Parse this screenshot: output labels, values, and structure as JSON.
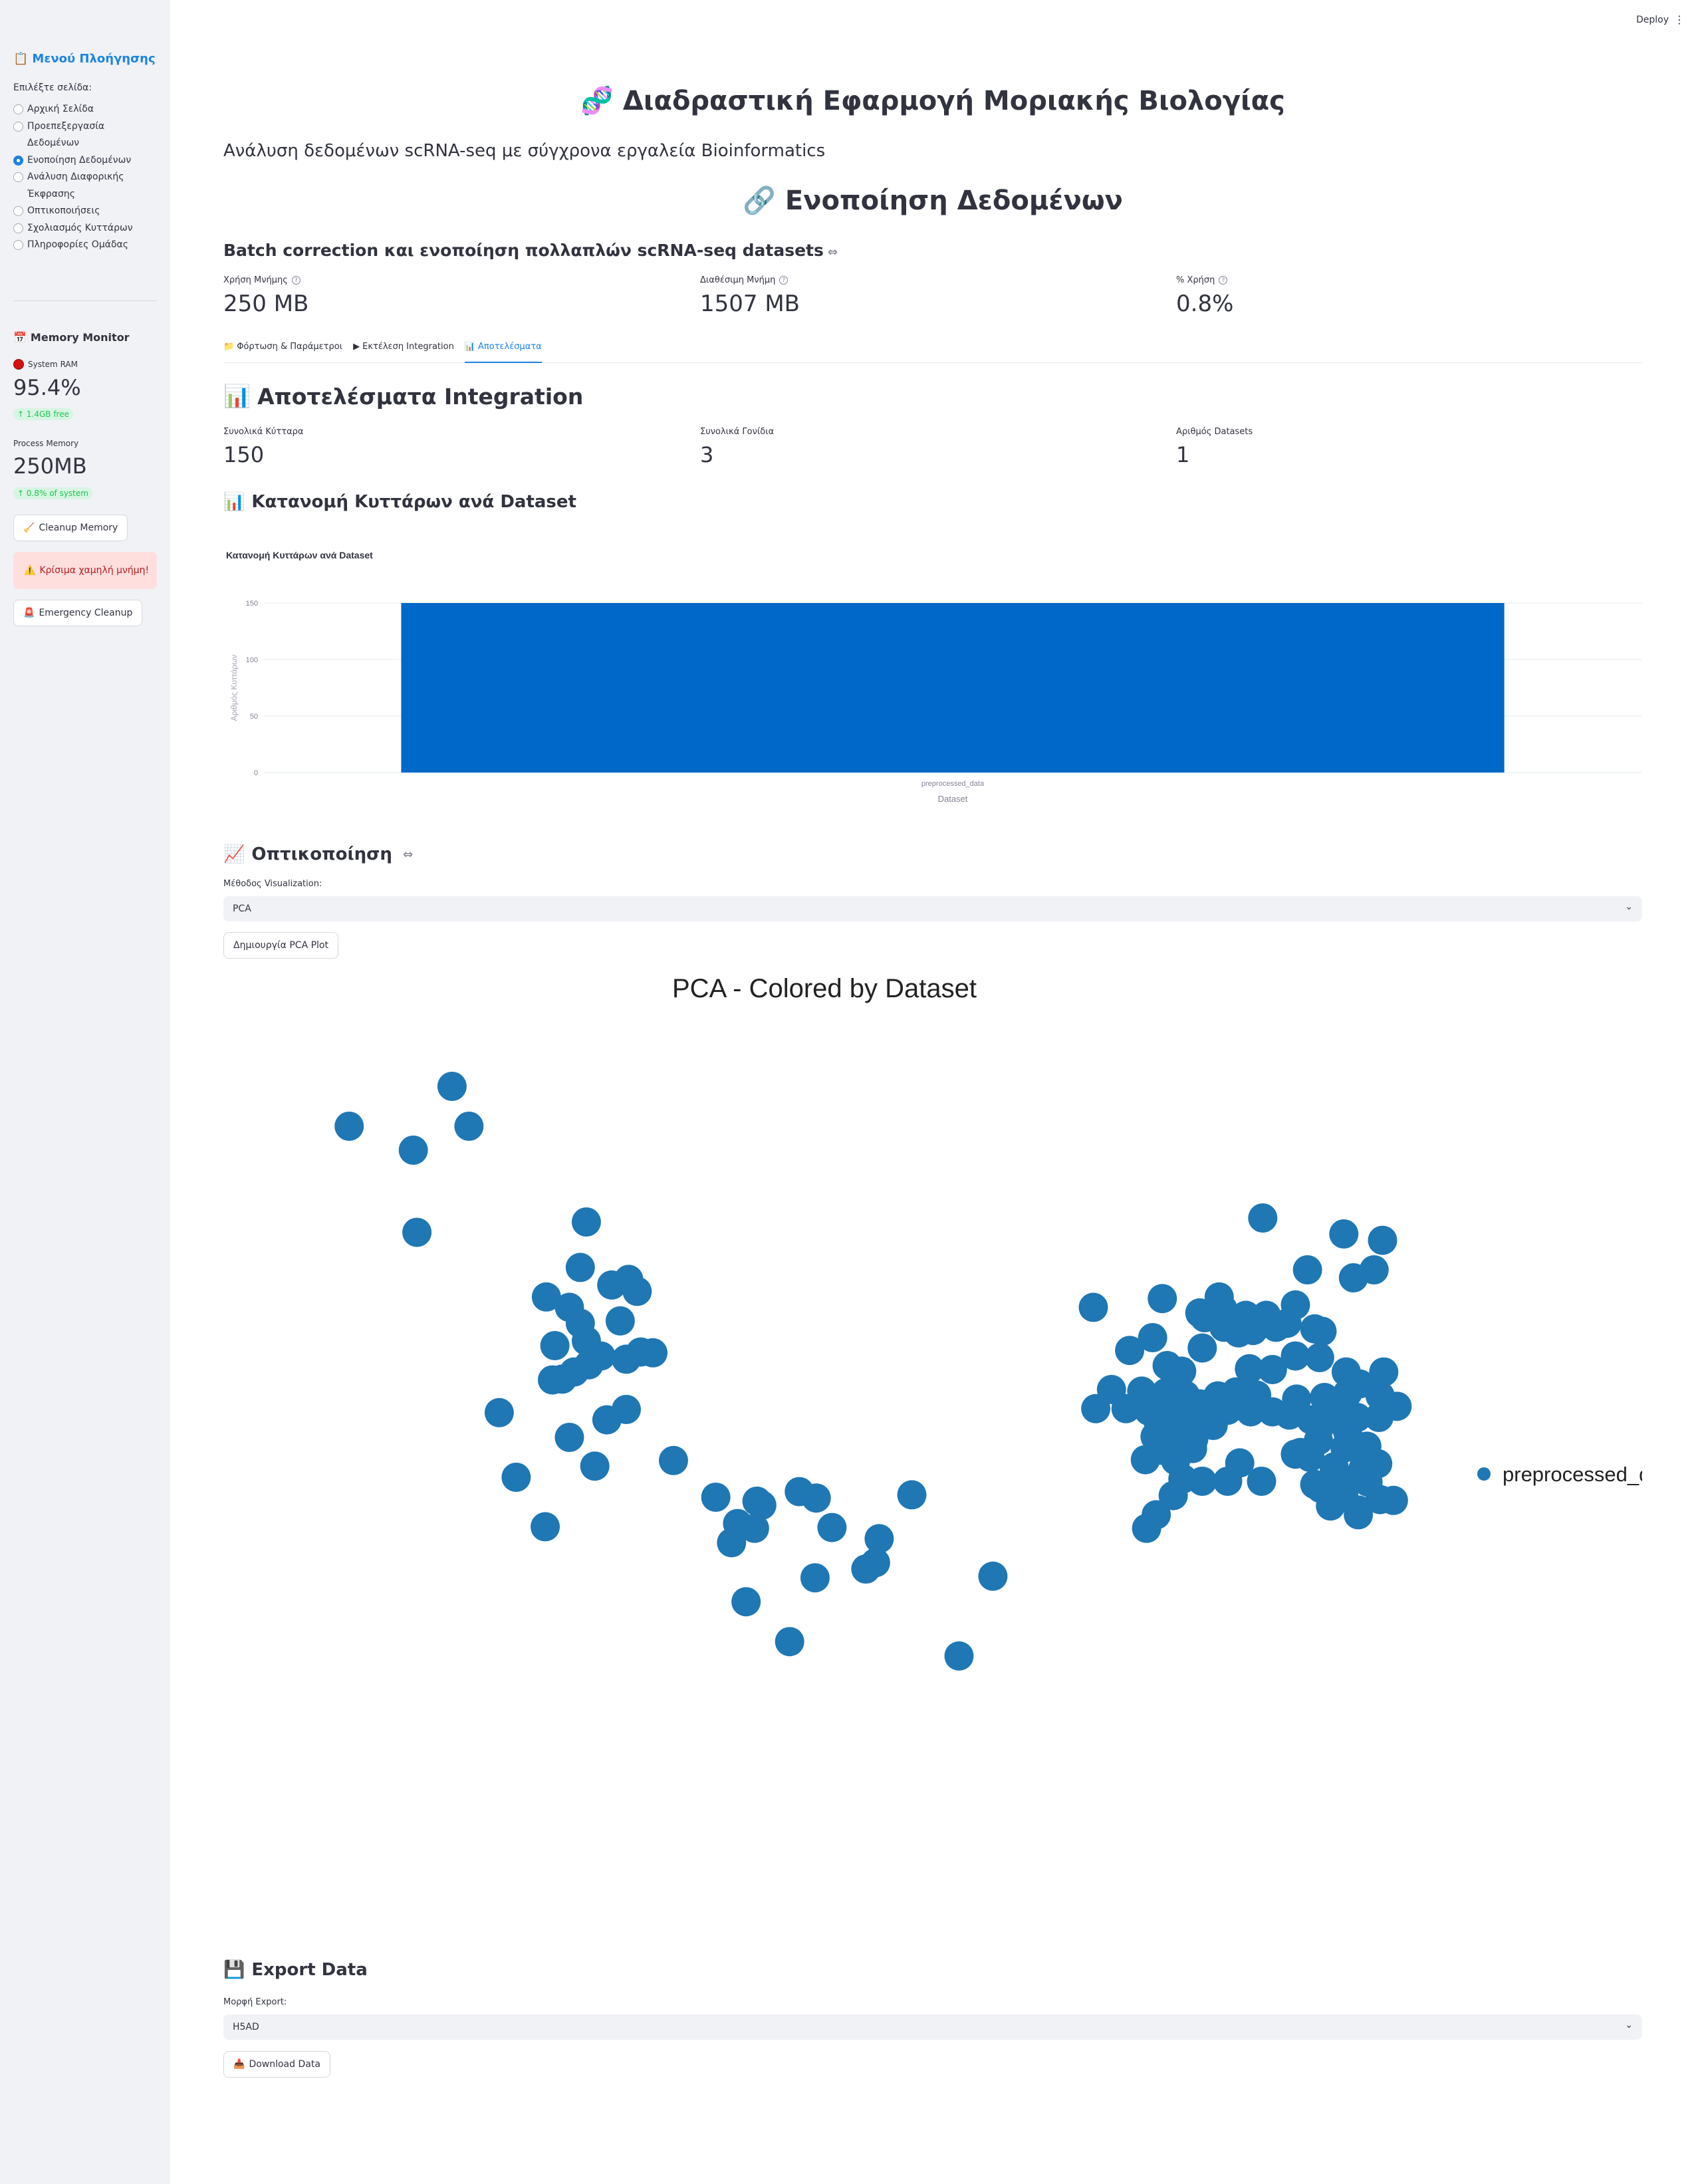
{
  "sidebar": {
    "menu_title": "Μενού Πλοήγησης",
    "select_label": "Επιλέξτε σελίδα:",
    "pages": [
      {
        "label": "Αρχική Σελίδα",
        "selected": false,
        "icon": "house-icon"
      },
      {
        "label": "Προεπεξεργασία Δεδομένων",
        "selected": false,
        "icon": "bar-chart-icon"
      },
      {
        "label": "Ενοποίηση Δεδομένων",
        "selected": true,
        "icon": "paperclip-icon"
      },
      {
        "label": "Ανάλυση Διαφορικής Έκφρασης",
        "selected": false,
        "icon": "pill-icon"
      },
      {
        "label": "Οπτικοποιήσεις",
        "selected": false,
        "icon": "line-chart-icon"
      },
      {
        "label": "Σχολιασμός Κυττάρων",
        "selected": false,
        "icon": "tag-icon"
      },
      {
        "label": "Πληροφορίες Ομάδας",
        "selected": false,
        "icon": "people-icon"
      }
    ],
    "memory_title": "Memory Monitor",
    "system_ram_label": "System RAM",
    "system_ram_value": "95.4%",
    "system_ram_delta": "1.4GB free",
    "process_memory_label": "Process Memory",
    "process_memory_value": "250MB",
    "process_memory_delta": "0.8% of system",
    "cleanup_button": "Cleanup Memory",
    "alert_text": "Κρίσιμα χαμηλή μνήμη!",
    "emergency_button": "Emergency Cleanup"
  },
  "header": {
    "deploy_label": "Deploy",
    "menu_glyph": "⋮"
  },
  "main": {
    "app_title": "Διαδραστική Εφαρμογή Μοριακής Βιολογίας",
    "app_title_icon": "🧬",
    "subtitle": "Ανάλυση δεδομένων scRNA-seq με σύγχρονα εργαλεία Bioinformatics",
    "page_title": "Ενοποίηση Δεδομένων",
    "page_title_icon": "🔗",
    "section_subtitle": "Batch correction και ενοποίηση πολλαπλών scRNA-seq datasets",
    "memory_metrics": [
      {
        "label": "Χρήση Μνήμης",
        "value": "250 MB"
      },
      {
        "label": "Διαθέσιμη Μνήμη",
        "value": "1507 MB"
      },
      {
        "label": "% Χρήση",
        "value": "0.8%"
      }
    ],
    "tabs": [
      {
        "label": "Φόρτωση & Παράμετροι",
        "icon": "folder-icon",
        "active": false
      },
      {
        "label": "Εκτέλεση Integration",
        "icon": "play-icon",
        "active": false
      },
      {
        "label": "Αποτελέσματα",
        "icon": "bar-chart-icon",
        "active": true
      }
    ],
    "results_title": "Αποτελέσματα Integration",
    "result_metrics": [
      {
        "label": "Συνολικά Κύτταρα",
        "value": "150"
      },
      {
        "label": "Συνολικά Γονίδια",
        "value": "3"
      },
      {
        "label": "Αριθμός Datasets",
        "value": "1"
      }
    ],
    "distribution_title": "Κατανομή Κυττάρων ανά Dataset",
    "visualization_title": "Οπτικοποίηση",
    "viz_method_label": "Μέθοδος Visualization:",
    "viz_method_value": "PCA",
    "create_plot_button": "Δημιουργία PCA Plot",
    "export_title": "Export Data",
    "export_format_label": "Μορφή Export:",
    "export_format_value": "H5AD",
    "download_button": "Download Data"
  },
  "chart_data": [
    {
      "type": "bar",
      "title": "Κατανομή Κυττάρων ανά Dataset",
      "categories": [
        "preprocessed_data"
      ],
      "values": [
        150
      ],
      "xlabel": "Dataset",
      "ylabel": "Αριθμός Κυττάρων",
      "ylim": [
        0,
        150
      ],
      "yticks": [
        0,
        50,
        100,
        150
      ],
      "grid": true,
      "color": "#0068c9"
    },
    {
      "type": "scatter",
      "title": "PCA - Colored by Dataset",
      "legend": [
        "preprocessed_data"
      ],
      "legend_position": "right",
      "color": "#1f77b4",
      "axes_visible": false,
      "xlim": [
        0,
        100
      ],
      "ylim": [
        0,
        100
      ],
      "points": [
        [
          6,
          98
        ],
        [
          14.5,
          103
        ],
        [
          11.3,
          95
        ],
        [
          15.9,
          98
        ],
        [
          11.6,
          84.7
        ],
        [
          25.6,
          86
        ],
        [
          25.1,
          80.3
        ],
        [
          27.7,
          78.1
        ],
        [
          29.1,
          78.8
        ],
        [
          29.8,
          77.3
        ],
        [
          24.2,
          75.3
        ],
        [
          22.3,
          76.6
        ],
        [
          28.4,
          73.6
        ],
        [
          25.1,
          73.3
        ],
        [
          25.6,
          71.1
        ],
        [
          23,
          70.5
        ],
        [
          26.8,
          69.2
        ],
        [
          28.9,
          68.8
        ],
        [
          30.1,
          69.7
        ],
        [
          31.1,
          69.6
        ],
        [
          25.8,
          68.1
        ],
        [
          24.6,
          67.2
        ],
        [
          23.6,
          66.3
        ],
        [
          22.8,
          66.2
        ],
        [
          18.4,
          62.1
        ],
        [
          28.9,
          62.5
        ],
        [
          27.3,
          61.2
        ],
        [
          24.2,
          59
        ],
        [
          26.3,
          55.4
        ],
        [
          32.8,
          56.1
        ],
        [
          19.8,
          54
        ],
        [
          36.3,
          51.5
        ],
        [
          39.7,
          51
        ],
        [
          40.1,
          50.5
        ],
        [
          44.6,
          51.4
        ],
        [
          43.2,
          52.2
        ],
        [
          52.5,
          51.8
        ],
        [
          39.5,
          47.6
        ],
        [
          38.1,
          48.2
        ],
        [
          45.9,
          47.7
        ],
        [
          49.8,
          46.3
        ],
        [
          22.2,
          47.8
        ],
        [
          37.6,
          45.8
        ],
        [
          49.5,
          43.3
        ],
        [
          44.5,
          41.4
        ],
        [
          48.7,
          42.5
        ],
        [
          59.2,
          41.6
        ],
        [
          38.8,
          38.4
        ],
        [
          42.4,
          33.4
        ],
        [
          56.4,
          31.6
        ],
        [
          81.5,
          86.5
        ],
        [
          88.2,
          84.5
        ],
        [
          91.4,
          83.7
        ],
        [
          90.7,
          80
        ],
        [
          89,
          79
        ],
        [
          85.2,
          80
        ],
        [
          84.2,
          75.6
        ],
        [
          77.9,
          76.6
        ],
        [
          67.5,
          75.3
        ],
        [
          73.2,
          76.4
        ],
        [
          76.3,
          74.6
        ],
        [
          78.2,
          75.1
        ],
        [
          76.7,
          74
        ],
        [
          80.1,
          74.3
        ],
        [
          81.8,
          74.3
        ],
        [
          83.5,
          73.3
        ],
        [
          86.4,
          72.3
        ],
        [
          80.7,
          72.4
        ],
        [
          82.6,
          72.8
        ],
        [
          78.3,
          72.8
        ],
        [
          79.5,
          72.1
        ],
        [
          85.8,
          72.6
        ],
        [
          70.5,
          69.9
        ],
        [
          72.4,
          71.5
        ],
        [
          76.5,
          70.2
        ],
        [
          84.2,
          69.2
        ],
        [
          86.2,
          69
        ],
        [
          73.6,
          68
        ],
        [
          74.8,
          67.3
        ],
        [
          80.4,
          67.6
        ],
        [
          82.3,
          67.5
        ],
        [
          88.4,
          67.2
        ],
        [
          91.5,
          67.2
        ],
        [
          89.5,
          65.7
        ],
        [
          71.5,
          64.8
        ],
        [
          69,
          65
        ],
        [
          73.5,
          64.6
        ],
        [
          75.1,
          64.3
        ],
        [
          77.8,
          64.2
        ],
        [
          79.3,
          64.7
        ],
        [
          81,
          64.3
        ],
        [
          84.3,
          63.8
        ],
        [
          86.6,
          64
        ],
        [
          88.5,
          64.5
        ],
        [
          91.2,
          64.2
        ],
        [
          92.6,
          62.9
        ],
        [
          70.2,
          62.6
        ],
        [
          67.7,
          62.6
        ],
        [
          72.1,
          62.3
        ],
        [
          74.3,
          62.4
        ],
        [
          76.7,
          62.6
        ],
        [
          78.6,
          62.4
        ],
        [
          80.5,
          62.2
        ],
        [
          82.3,
          62.2
        ],
        [
          83.7,
          61.8
        ],
        [
          85.5,
          61.2
        ],
        [
          87.6,
          61.4
        ],
        [
          89.3,
          61.5
        ],
        [
          91.1,
          61.5
        ],
        [
          72.9,
          60.6
        ],
        [
          75.3,
          60.4
        ],
        [
          77.4,
          60.5
        ],
        [
          86.2,
          60.3
        ],
        [
          88.5,
          59.8
        ],
        [
          72.6,
          59.1
        ],
        [
          74.1,
          58.7
        ],
        [
          75.8,
          58.8
        ],
        [
          86.1,
          58.6
        ],
        [
          88.3,
          57.7
        ],
        [
          90.1,
          57.9
        ],
        [
          84.6,
          57.1
        ],
        [
          73.1,
          57.4
        ],
        [
          75.7,
          57.6
        ],
        [
          71.8,
          56.2
        ],
        [
          74.3,
          56.1
        ],
        [
          84.2,
          56.9
        ],
        [
          85.4,
          56.5
        ],
        [
          87.4,
          55.3
        ],
        [
          91,
          55.7
        ],
        [
          89.8,
          55.1
        ],
        [
          87.5,
          54.5
        ],
        [
          90.2,
          53.4
        ],
        [
          76.5,
          53.5
        ],
        [
          74.9,
          53.8
        ],
        [
          78.6,
          53.5
        ],
        [
          81.4,
          53.5
        ],
        [
          86.3,
          52.6
        ],
        [
          88,
          53.7
        ],
        [
          88.2,
          51.9
        ],
        [
          91.2,
          51.2
        ],
        [
          74.1,
          51.7
        ],
        [
          87.1,
          50.4
        ],
        [
          89.4,
          49.9
        ],
        [
          92.3,
          51.1
        ],
        [
          72.7,
          49.3
        ],
        [
          71.9,
          47.6
        ],
        [
          89.4,
          49.3
        ],
        [
          85.8,
          53.1
        ],
        [
          79.6,
          55.8
        ],
        [
          76.3,
          63.2
        ]
      ]
    }
  ]
}
